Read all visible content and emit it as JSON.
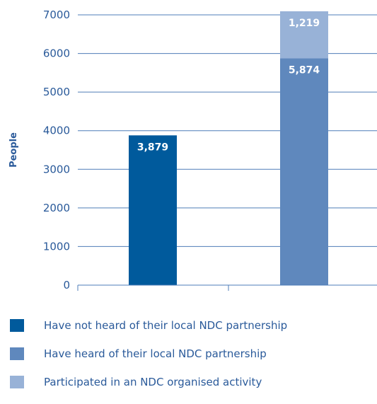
{
  "chart_data": {
    "type": "bar",
    "stacked": true,
    "ylabel": "People",
    "ylim": [
      0,
      7000
    ],
    "yticks": [
      0,
      1000,
      2000,
      3000,
      4000,
      5000,
      6000,
      7000
    ],
    "grid": true,
    "categories": [
      "",
      ""
    ],
    "series": [
      {
        "name": "Have not heard of their local NDC partnership",
        "values": [
          3879,
          null
        ],
        "labels": [
          "3,879",
          ""
        ],
        "color": "#005a9c"
      },
      {
        "name": "Have heard of their local NDC partnership",
        "values": [
          null,
          5874
        ],
        "labels": [
          "",
          "5,874"
        ],
        "color": "#5f88bd"
      },
      {
        "name": "Participated in an NDC organised activity",
        "values": [
          null,
          1219
        ],
        "labels": [
          "",
          "1,219"
        ],
        "color": "#98b2d7"
      }
    ],
    "legend_position": "bottom"
  }
}
